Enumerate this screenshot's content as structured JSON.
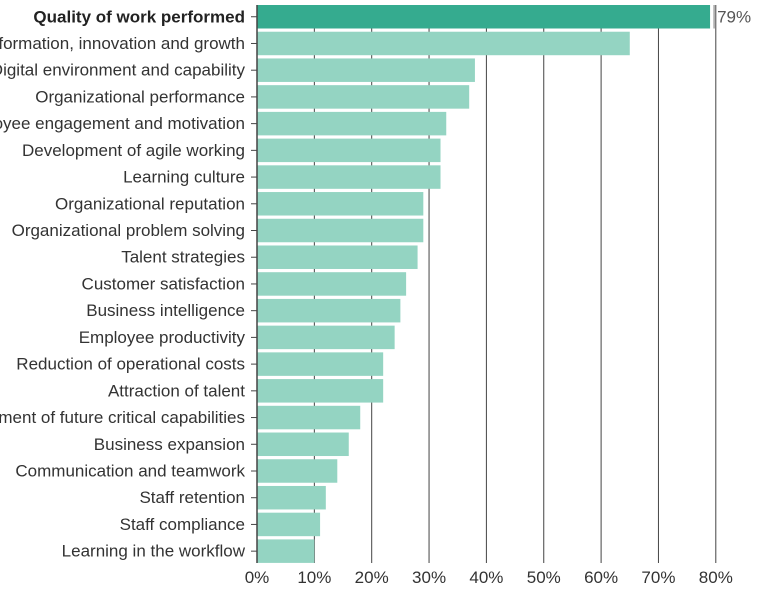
{
  "chart_data": {
    "type": "bar",
    "orientation": "horizontal",
    "categories": [
      "Quality of work performed",
      "Transformation, innovation and growth",
      "Digital environment and capability",
      "Organizational performance",
      "Employee engagement and motivation",
      "Development of agile working",
      "Learning culture",
      "Organizational reputation",
      "Organizational problem solving",
      "Talent strategies",
      "Customer satisfaction",
      "Business intelligence",
      "Employee productivity",
      "Reduction of operational costs",
      "Attraction of talent",
      "Development of future critical capabilities",
      "Business expansion",
      "Communication and teamwork",
      "Staff retention",
      "Staff compliance",
      "Learning in the workflow"
    ],
    "values": [
      79,
      65,
      38,
      37,
      33,
      32,
      32,
      29,
      29,
      28,
      26,
      25,
      24,
      22,
      22,
      18,
      16,
      14,
      12,
      11,
      10
    ],
    "highlighted_index": 0,
    "highlight_label": "79%",
    "xlim": [
      0,
      80
    ],
    "xticks": [
      0,
      10,
      20,
      30,
      40,
      50,
      60,
      70,
      80
    ],
    "xtick_labels": [
      "0%",
      "10%",
      "20%",
      "30%",
      "40%",
      "50%",
      "60%",
      "70%",
      "80%"
    ],
    "grid": true,
    "colors": {
      "highlight": "#35ab8f",
      "bar": "#94d4c2",
      "grid": "#444444",
      "axis": "#444444"
    }
  }
}
